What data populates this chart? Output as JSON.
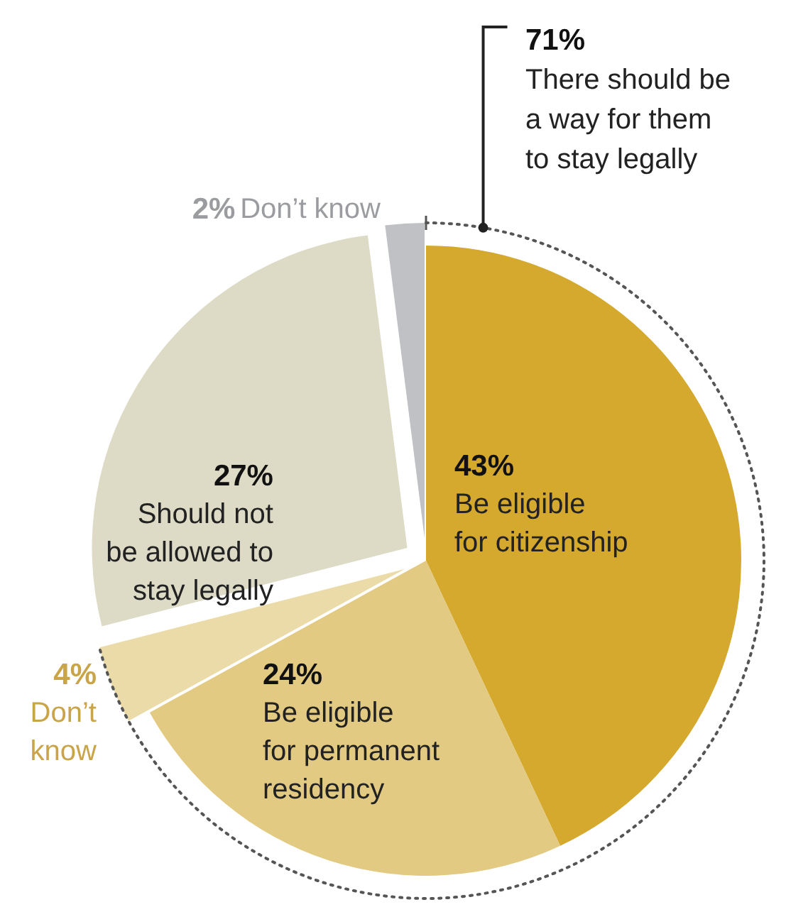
{
  "chart_data": {
    "type": "pie",
    "categories": [
      "Be eligible for citizenship",
      "Be eligible for permanent residency",
      "Don’t know",
      "Should not be allowed to stay legally",
      "Don’t know"
    ],
    "values": [
      43,
      24,
      4,
      27,
      2
    ],
    "value_labels": [
      "43%",
      "24%",
      "4%",
      "27%",
      "2%"
    ],
    "colors": [
      "#d4a92e",
      "#e2ca82",
      "#ebdba8",
      "#dddac6",
      "#c0c1c5"
    ],
    "annotations": [
      "71% There should be a way for them to stay legally"
    ],
    "legend": false
  }
}
